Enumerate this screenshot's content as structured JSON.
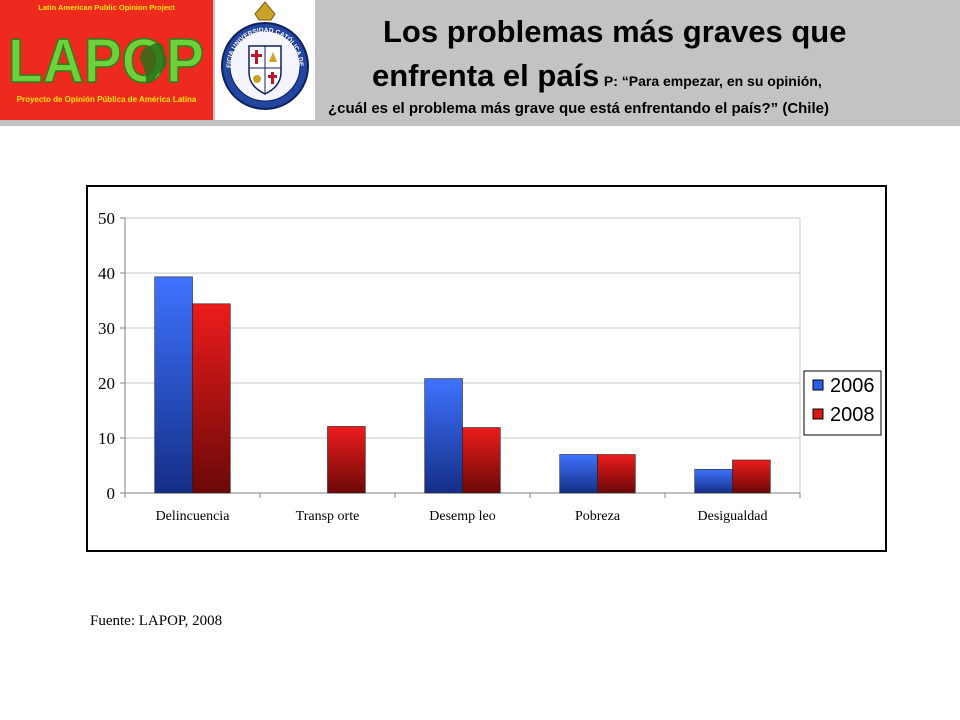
{
  "header": {
    "title_line1": "Los problemas más graves que",
    "title_line2_main": "enfrenta el país",
    "question_part1": "P: “Para empezar, en su opinión,",
    "question_part2": "¿cuál es el problema más grave que está enfrentando el país?” (Chile)"
  },
  "logo_lapop": {
    "top_text": "Latin American Public Opinion Project",
    "word": "LAPOP",
    "bottom_text": "Proyecto de Opinión Pública de América Latina"
  },
  "logo_seal": {
    "text": "PONTIFICIA UNIVERSIDAD CATÓLICA DE CHILE"
  },
  "source": "Fuente: LAPOP, 2008",
  "colors": {
    "header_bg": "#c3c3c3",
    "lapop_red": "#ee2a1e",
    "lapop_green": "#6fd13a",
    "lapop_yellow": "#ffe600",
    "series_2006": "#2c5fe8",
    "series_2008": "#d81818"
  },
  "chart_data": {
    "type": "bar",
    "categories": [
      "Delincuencia",
      "Transp orte",
      "Desemp leo",
      "Pobreza",
      "Desigualdad"
    ],
    "series": [
      {
        "name": "2006",
        "values": [
          39.3,
          null,
          20.8,
          7.0,
          4.3
        ]
      },
      {
        "name": "2008",
        "values": [
          34.4,
          12.1,
          11.9,
          7.0,
          6.0
        ]
      }
    ],
    "y_ticks": [
      "0",
      "10",
      "20",
      "30",
      "40",
      "50"
    ],
    "ylim": [
      0,
      50
    ],
    "grid": true,
    "legend_position": "right"
  }
}
